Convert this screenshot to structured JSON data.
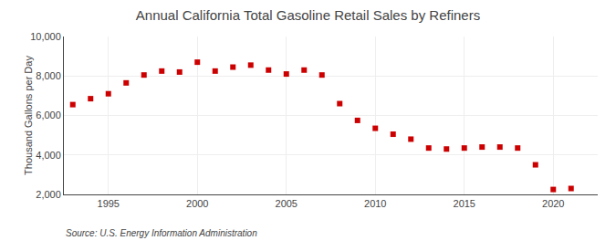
{
  "chart_data": {
    "type": "scatter",
    "title": "Annual California Total Gasoline Retail Sales by Refiners",
    "ylabel": "Thousand Gallons per Day",
    "source": "Source: U.S. Energy Information Administration",
    "x": [
      1993,
      1994,
      1995,
      1996,
      1997,
      1998,
      1999,
      2000,
      2001,
      2002,
      2003,
      2004,
      2005,
      2006,
      2007,
      2008,
      2009,
      2010,
      2011,
      2012,
      2013,
      2014,
      2015,
      2016,
      2017,
      2018,
      2019,
      2020,
      2021
    ],
    "values": [
      6550,
      6850,
      7100,
      7650,
      8050,
      8250,
      8200,
      8700,
      8250,
      8450,
      8550,
      8300,
      8100,
      8300,
      8050,
      6600,
      5750,
      5350,
      5050,
      4800,
      4350,
      4300,
      4350,
      4400,
      4400,
      4350,
      3500,
      2250,
      2300
    ],
    "color": "#cc0000",
    "marker": "square",
    "xlim": [
      1992.5,
      2022.5
    ],
    "xticks": [
      1995,
      2000,
      2005,
      2010,
      2015,
      2020
    ],
    "ylim": [
      2000,
      10000
    ],
    "yticks": [
      {
        "value": 2000,
        "label": "2,000"
      },
      {
        "value": 4000,
        "label": "4,000"
      },
      {
        "value": 6000,
        "label": "6,000"
      },
      {
        "value": 8000,
        "label": "8,000"
      },
      {
        "value": 10000,
        "label": "10,000"
      }
    ],
    "grid": true
  }
}
